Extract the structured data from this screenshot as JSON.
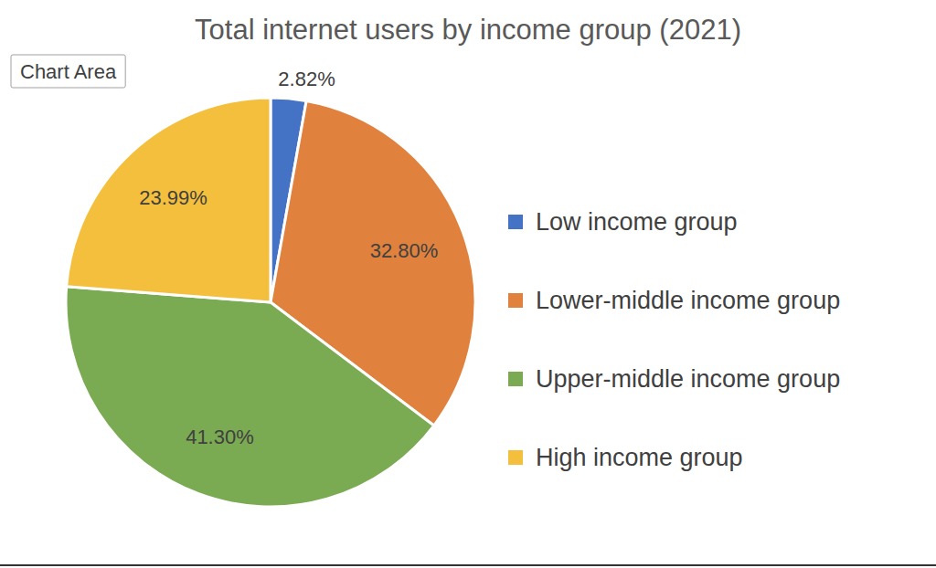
{
  "chart_data": {
    "type": "pie",
    "title": "Total internet users by income group (2021)",
    "categories": [
      "Low income group",
      "Lower-middle income group",
      "Upper-middle income group",
      "High income group"
    ],
    "values": [
      2.82,
      32.8,
      41.3,
      23.99
    ],
    "value_labels": [
      "2.82%",
      "32.80%",
      "41.30%",
      "23.99%"
    ],
    "colors": [
      "#4472c4",
      "#e0823d",
      "#7aab52",
      "#f4bf3c"
    ],
    "annotations": [
      "Chart Area"
    ],
    "data_labels": true,
    "legend": "right"
  }
}
